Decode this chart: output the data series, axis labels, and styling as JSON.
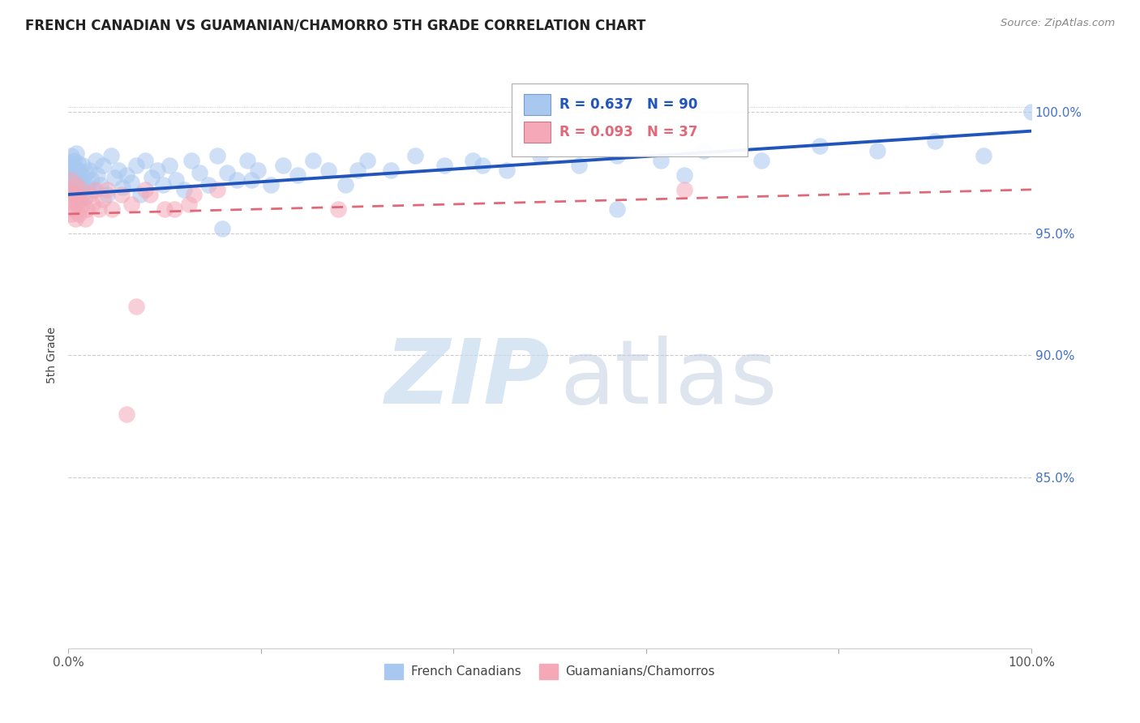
{
  "title": "FRENCH CANADIAN VS GUAMANIAN/CHAMORRO 5TH GRADE CORRELATION CHART",
  "source": "Source: ZipAtlas.com",
  "ylabel": "5th Grade",
  "xlim": [
    0.0,
    1.0
  ],
  "ylim": [
    0.78,
    1.02
  ],
  "ytick_labels": [
    "85.0%",
    "90.0%",
    "95.0%",
    "100.0%"
  ],
  "ytick_positions": [
    0.85,
    0.9,
    0.95,
    1.0
  ],
  "blue_R": 0.637,
  "blue_N": 90,
  "pink_R": 0.093,
  "pink_N": 37,
  "blue_color": "#A8C8F0",
  "pink_color": "#F4A8B8",
  "blue_line_color": "#2255BB",
  "pink_line_color": "#E06878",
  "legend_blue_label": "French Canadians",
  "legend_pink_label": "Guamanians/Chamorros",
  "blue_scatter_x": [
    0.0,
    0.001,
    0.001,
    0.002,
    0.003,
    0.003,
    0.004,
    0.004,
    0.005,
    0.005,
    0.006,
    0.006,
    0.007,
    0.007,
    0.008,
    0.008,
    0.009,
    0.009,
    0.01,
    0.01,
    0.011,
    0.011,
    0.012,
    0.013,
    0.014,
    0.015,
    0.016,
    0.017,
    0.018,
    0.02,
    0.022,
    0.024,
    0.026,
    0.028,
    0.03,
    0.033,
    0.036,
    0.04,
    0.044,
    0.048,
    0.052,
    0.056,
    0.06,
    0.065,
    0.07,
    0.075,
    0.08,
    0.086,
    0.092,
    0.098,
    0.105,
    0.112,
    0.12,
    0.128,
    0.136,
    0.145,
    0.155,
    0.165,
    0.175,
    0.186,
    0.197,
    0.21,
    0.223,
    0.238,
    0.254,
    0.27,
    0.288,
    0.31,
    0.335,
    0.36,
    0.39,
    0.42,
    0.455,
    0.49,
    0.53,
    0.57,
    0.615,
    0.66,
    0.72,
    0.78,
    0.84,
    0.9,
    0.95,
    0.57,
    0.64,
    0.3,
    0.43,
    0.19,
    0.16,
    1.0
  ],
  "blue_scatter_y": [
    0.975,
    0.972,
    0.979,
    0.968,
    0.974,
    0.982,
    0.967,
    0.976,
    0.971,
    0.978,
    0.966,
    0.98,
    0.973,
    0.977,
    0.969,
    0.983,
    0.97,
    0.975,
    0.964,
    0.979,
    0.972,
    0.976,
    0.968,
    0.974,
    0.97,
    0.978,
    0.971,
    0.965,
    0.975,
    0.969,
    0.976,
    0.972,
    0.968,
    0.98,
    0.974,
    0.97,
    0.978,
    0.966,
    0.982,
    0.973,
    0.976,
    0.969,
    0.974,
    0.971,
    0.978,
    0.966,
    0.98,
    0.973,
    0.976,
    0.97,
    0.978,
    0.972,
    0.968,
    0.98,
    0.975,
    0.97,
    0.982,
    0.975,
    0.972,
    0.98,
    0.976,
    0.97,
    0.978,
    0.974,
    0.98,
    0.976,
    0.97,
    0.98,
    0.976,
    0.982,
    0.978,
    0.98,
    0.976,
    0.982,
    0.978,
    0.982,
    0.98,
    0.984,
    0.98,
    0.986,
    0.984,
    0.988,
    0.982,
    0.96,
    0.974,
    0.976,
    0.978,
    0.972,
    0.952,
    1.0
  ],
  "pink_scatter_x": [
    0.0,
    0.001,
    0.002,
    0.003,
    0.004,
    0.005,
    0.006,
    0.007,
    0.008,
    0.009,
    0.01,
    0.011,
    0.012,
    0.013,
    0.015,
    0.017,
    0.019,
    0.022,
    0.025,
    0.028,
    0.032,
    0.036,
    0.04,
    0.045,
    0.055,
    0.065,
    0.08,
    0.1,
    0.125,
    0.155,
    0.06,
    0.085,
    0.11,
    0.64,
    0.28,
    0.13,
    0.07
  ],
  "pink_scatter_y": [
    0.968,
    0.963,
    0.972,
    0.958,
    0.966,
    0.96,
    0.964,
    0.956,
    0.97,
    0.962,
    0.966,
    0.958,
    0.964,
    0.968,
    0.962,
    0.956,
    0.96,
    0.966,
    0.962,
    0.968,
    0.96,
    0.964,
    0.968,
    0.96,
    0.966,
    0.962,
    0.968,
    0.96,
    0.962,
    0.968,
    0.876,
    0.966,
    0.96,
    0.968,
    0.96,
    0.966,
    0.92
  ],
  "blue_trend_x0": 0.0,
  "blue_trend_y0": 0.966,
  "blue_trend_x1": 1.0,
  "blue_trend_y1": 0.992,
  "pink_trend_x0": 0.0,
  "pink_trend_y0": 0.958,
  "pink_trend_x1": 1.0,
  "pink_trend_y1": 0.968
}
